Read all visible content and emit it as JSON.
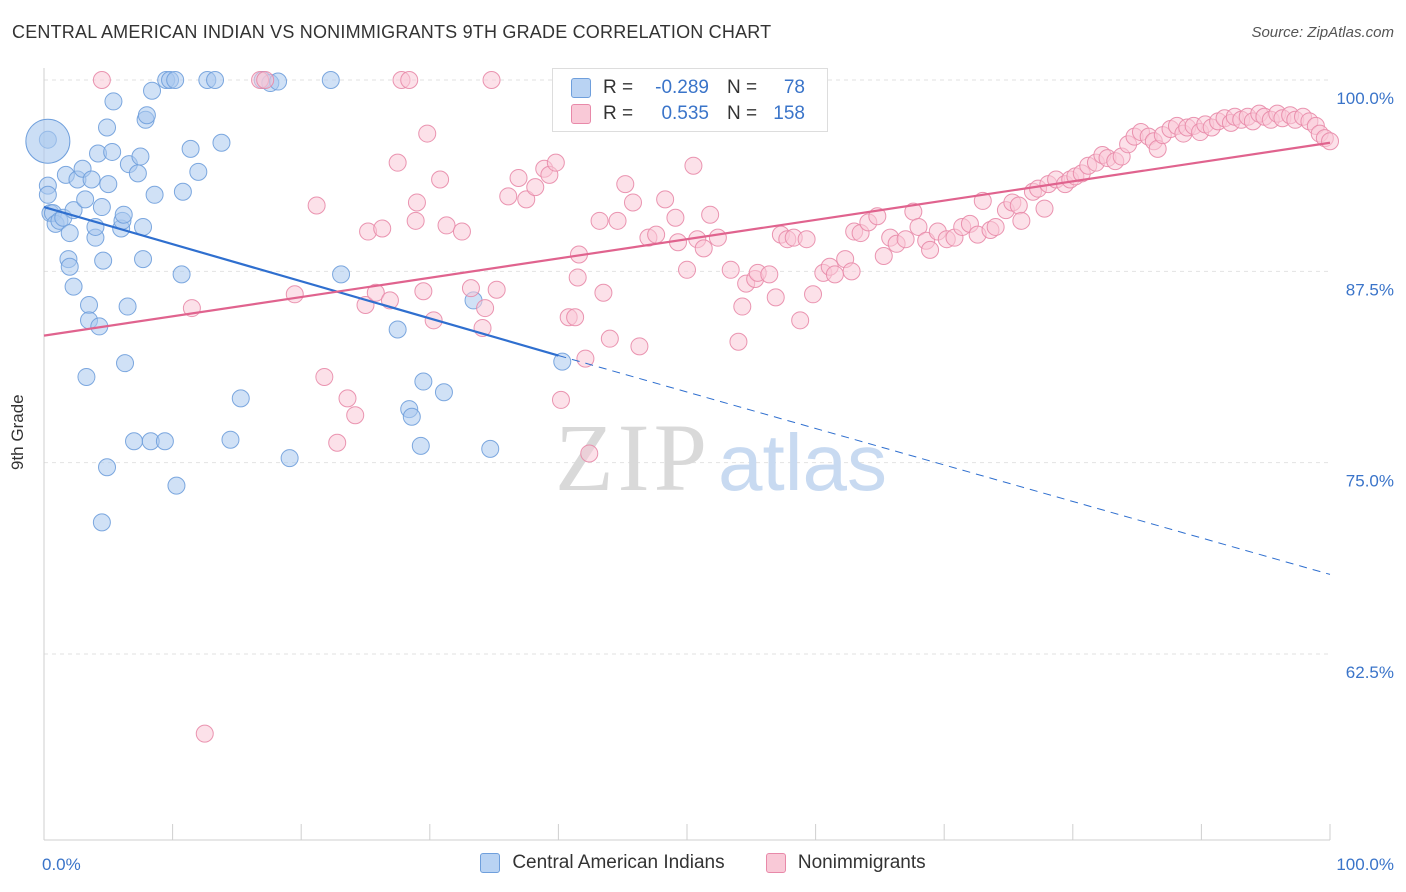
{
  "title": "CENTRAL AMERICAN INDIAN VS NONIMMIGRANTS 9TH GRADE CORRELATION CHART",
  "source": "Source: ZipAtlas.com",
  "watermark": {
    "zip": "ZIP",
    "atlas": "atlas"
  },
  "legend_box": {
    "rows": [
      {
        "r_label": "R =",
        "r_value": "-0.289",
        "n_label": "N =",
        "n_value": "78",
        "color": "#a9c8ef"
      },
      {
        "r_label": "R =",
        "r_value": "0.535",
        "n_label": "N =",
        "n_value": "158",
        "color": "#f5b6c9"
      }
    ]
  },
  "bottom_legend": [
    {
      "label": "Central American Indians",
      "color": "#a9c8ef",
      "border": "#6f9fdc"
    },
    {
      "label": "Nonimmigrants",
      "color": "#f9c9d7",
      "border": "#e889a9"
    }
  ],
  "chart_data": {
    "type": "scatter",
    "title": "CENTRAL AMERICAN INDIAN VS NONIMMIGRANTS 9TH GRADE CORRELATION CHART",
    "xlabel": "",
    "ylabel": "9th Grade",
    "xlim": [
      0,
      100
    ],
    "ylim": [
      53,
      101
    ],
    "x_tick_labels": [
      "0.0%",
      "100.0%"
    ],
    "y_ticks": [
      62.5,
      75.0,
      87.5,
      100.0
    ],
    "y_tick_labels": [
      "62.5%",
      "75.0%",
      "87.5%",
      "100.0%"
    ],
    "grid": true,
    "series": [
      {
        "name": "Central American Indians",
        "color": "#6f9fdc",
        "fill": "#a9c8ef",
        "trend": {
          "x": [
            0,
            40
          ],
          "y": [
            91.7,
            82.0
          ],
          "dashed_to": [
            100,
            67.7
          ]
        },
        "points": [
          [
            0.3,
            96.1
          ],
          [
            0.3,
            93.1
          ],
          [
            0.5,
            91.3
          ],
          [
            0.7,
            91.3
          ],
          [
            0.9,
            90.6
          ],
          [
            1.2,
            90.8
          ],
          [
            1.5,
            91.0
          ],
          [
            1.7,
            93.8
          ],
          [
            2.0,
            90.0
          ],
          [
            2.3,
            91.5
          ],
          [
            1.9,
            88.3
          ],
          [
            2.0,
            87.8
          ],
          [
            2.3,
            86.5
          ],
          [
            2.6,
            93.5
          ],
          [
            3.0,
            94.2
          ],
          [
            3.2,
            92.2
          ],
          [
            3.5,
            85.3
          ],
          [
            3.5,
            84.3
          ],
          [
            3.7,
            93.5
          ],
          [
            4.0,
            89.7
          ],
          [
            4.0,
            90.4
          ],
          [
            4.3,
            83.9
          ],
          [
            4.2,
            95.2
          ],
          [
            4.6,
            88.2
          ],
          [
            4.9,
            74.7
          ],
          [
            4.5,
            71.1
          ],
          [
            4.5,
            91.7
          ],
          [
            5.0,
            93.2
          ],
          [
            4.9,
            96.9
          ],
          [
            5.3,
            95.3
          ],
          [
            5.4,
            98.6
          ],
          [
            6.0,
            90.3
          ],
          [
            6.1,
            90.8
          ],
          [
            6.2,
            91.2
          ],
          [
            6.3,
            81.5
          ],
          [
            6.5,
            85.2
          ],
          [
            6.6,
            94.5
          ],
          [
            7.0,
            76.4
          ],
          [
            7.3,
            93.9
          ],
          [
            7.5,
            95.0
          ],
          [
            7.7,
            88.3
          ],
          [
            7.7,
            90.4
          ],
          [
            7.9,
            97.4
          ],
          [
            8.0,
            97.7
          ],
          [
            8.3,
            76.4
          ],
          [
            8.4,
            99.3
          ],
          [
            8.6,
            92.5
          ],
          [
            9.4,
            76.4
          ],
          [
            9.5,
            100.0
          ],
          [
            9.8,
            100.0
          ],
          [
            10.3,
            73.5
          ],
          [
            10.2,
            100.0
          ],
          [
            10.8,
            92.7
          ],
          [
            10.7,
            87.3
          ],
          [
            11.4,
            95.5
          ],
          [
            12.0,
            94.0
          ],
          [
            12.7,
            100.0
          ],
          [
            13.3,
            100.0
          ],
          [
            13.8,
            95.9
          ],
          [
            14.5,
            76.5
          ],
          [
            15.3,
            79.2
          ],
          [
            17.0,
            100.0
          ],
          [
            17.6,
            99.8
          ],
          [
            18.2,
            99.9
          ],
          [
            19.1,
            75.3
          ],
          [
            22.3,
            100.0
          ],
          [
            23.1,
            87.3
          ],
          [
            27.5,
            83.7
          ],
          [
            28.4,
            78.5
          ],
          [
            28.6,
            78.0
          ],
          [
            29.3,
            76.1
          ],
          [
            29.5,
            80.3
          ],
          [
            31.1,
            79.6
          ],
          [
            33.4,
            85.6
          ],
          [
            34.7,
            75.9
          ],
          [
            3.3,
            80.6
          ],
          [
            0.3,
            92.5
          ],
          [
            40.3,
            81.6
          ]
        ],
        "big_point": [
          0.3,
          96.0
        ]
      },
      {
        "name": "Nonimmigrants",
        "color": "#e889a9",
        "fill": "#f9c9d7",
        "trend": {
          "x": [
            0,
            100
          ],
          "y": [
            83.3,
            95.9
          ]
        },
        "points": [
          [
            4.5,
            100.0
          ],
          [
            11.5,
            85.1
          ],
          [
            12.5,
            57.3
          ],
          [
            16.8,
            100.0
          ],
          [
            17.2,
            100.0
          ],
          [
            19.5,
            86.0
          ],
          [
            21.2,
            91.8
          ],
          [
            21.8,
            80.6
          ],
          [
            22.8,
            76.3
          ],
          [
            23.6,
            79.2
          ],
          [
            24.2,
            78.1
          ],
          [
            25.0,
            85.3
          ],
          [
            25.2,
            90.1
          ],
          [
            25.8,
            86.1
          ],
          [
            26.3,
            90.3
          ],
          [
            26.9,
            85.6
          ],
          [
            27.5,
            94.6
          ],
          [
            27.8,
            100.0
          ],
          [
            28.4,
            100.0
          ],
          [
            28.9,
            90.8
          ],
          [
            29.0,
            92.0
          ],
          [
            29.5,
            86.2
          ],
          [
            29.8,
            96.5
          ],
          [
            30.3,
            84.3
          ],
          [
            30.8,
            93.5
          ],
          [
            31.3,
            90.5
          ],
          [
            32.5,
            90.1
          ],
          [
            33.2,
            86.4
          ],
          [
            34.3,
            85.1
          ],
          [
            34.1,
            83.8
          ],
          [
            35.2,
            86.3
          ],
          [
            34.8,
            100.0
          ],
          [
            36.1,
            92.4
          ],
          [
            36.9,
            93.6
          ],
          [
            37.5,
            92.2
          ],
          [
            38.2,
            93.0
          ],
          [
            38.9,
            94.2
          ],
          [
            39.3,
            93.8
          ],
          [
            39.8,
            94.6
          ],
          [
            40.2,
            79.1
          ],
          [
            40.8,
            84.5
          ],
          [
            41.3,
            84.5
          ],
          [
            41.6,
            88.6
          ],
          [
            41.5,
            87.1
          ],
          [
            42.4,
            75.6
          ],
          [
            42.1,
            81.8
          ],
          [
            43.2,
            90.8
          ],
          [
            43.5,
            86.1
          ],
          [
            44.0,
            83.1
          ],
          [
            44.6,
            90.8
          ],
          [
            45.2,
            93.2
          ],
          [
            45.8,
            92.0
          ],
          [
            46.3,
            82.6
          ],
          [
            47.0,
            89.7
          ],
          [
            47.6,
            89.9
          ],
          [
            48.3,
            92.2
          ],
          [
            49.3,
            89.4
          ],
          [
            49.1,
            91.0
          ],
          [
            50.0,
            87.6
          ],
          [
            50.5,
            94.4
          ],
          [
            50.8,
            89.6
          ],
          [
            51.3,
            89.0
          ],
          [
            51.8,
            91.2
          ],
          [
            52.4,
            89.7
          ],
          [
            53.4,
            87.6
          ],
          [
            54.0,
            82.9
          ],
          [
            54.6,
            86.7
          ],
          [
            55.3,
            87.0
          ],
          [
            54.3,
            85.2
          ],
          [
            55.5,
            87.4
          ],
          [
            56.4,
            87.3
          ],
          [
            56.9,
            85.8
          ],
          [
            57.3,
            89.9
          ],
          [
            57.8,
            89.6
          ],
          [
            58.3,
            89.7
          ],
          [
            58.8,
            84.3
          ],
          [
            59.3,
            89.6
          ],
          [
            59.8,
            86.0
          ],
          [
            60.6,
            87.4
          ],
          [
            61.1,
            87.8
          ],
          [
            61.5,
            87.3
          ],
          [
            62.3,
            88.3
          ],
          [
            62.8,
            87.5
          ],
          [
            63.0,
            90.1
          ],
          [
            63.5,
            90.0
          ],
          [
            64.1,
            90.7
          ],
          [
            64.8,
            91.1
          ],
          [
            65.3,
            88.5
          ],
          [
            65.8,
            89.7
          ],
          [
            66.3,
            89.3
          ],
          [
            67.0,
            89.6
          ],
          [
            67.6,
            91.4
          ],
          [
            68.0,
            90.4
          ],
          [
            68.6,
            89.5
          ],
          [
            68.9,
            88.9
          ],
          [
            69.5,
            90.1
          ],
          [
            70.2,
            89.6
          ],
          [
            70.8,
            89.7
          ],
          [
            71.4,
            90.4
          ],
          [
            72.0,
            90.6
          ],
          [
            72.6,
            89.9
          ],
          [
            73.0,
            92.1
          ],
          [
            73.6,
            90.2
          ],
          [
            74.0,
            90.4
          ],
          [
            74.8,
            91.5
          ],
          [
            75.3,
            92.0
          ],
          [
            75.8,
            91.8
          ],
          [
            76.0,
            90.8
          ],
          [
            76.9,
            92.7
          ],
          [
            77.3,
            92.9
          ],
          [
            77.8,
            91.6
          ],
          [
            78.1,
            93.2
          ],
          [
            78.7,
            93.5
          ],
          [
            79.4,
            93.2
          ],
          [
            79.8,
            93.5
          ],
          [
            80.2,
            93.7
          ],
          [
            80.7,
            93.9
          ],
          [
            81.2,
            94.4
          ],
          [
            81.8,
            94.6
          ],
          [
            82.3,
            95.1
          ],
          [
            82.7,
            94.9
          ],
          [
            83.3,
            94.7
          ],
          [
            83.8,
            95.0
          ],
          [
            84.3,
            95.8
          ],
          [
            84.8,
            96.3
          ],
          [
            85.3,
            96.6
          ],
          [
            85.9,
            96.3
          ],
          [
            86.3,
            96.0
          ],
          [
            86.6,
            95.5
          ],
          [
            87.0,
            96.4
          ],
          [
            87.6,
            96.8
          ],
          [
            88.1,
            97.0
          ],
          [
            88.6,
            96.5
          ],
          [
            88.9,
            96.9
          ],
          [
            89.4,
            97.0
          ],
          [
            89.9,
            96.6
          ],
          [
            90.3,
            97.1
          ],
          [
            90.8,
            96.9
          ],
          [
            91.3,
            97.3
          ],
          [
            91.8,
            97.5
          ],
          [
            92.3,
            97.2
          ],
          [
            92.6,
            97.6
          ],
          [
            93.1,
            97.4
          ],
          [
            93.6,
            97.6
          ],
          [
            94.0,
            97.3
          ],
          [
            94.5,
            97.8
          ],
          [
            94.9,
            97.6
          ],
          [
            95.4,
            97.4
          ],
          [
            95.9,
            97.8
          ],
          [
            96.3,
            97.5
          ],
          [
            96.9,
            97.7
          ],
          [
            97.3,
            97.4
          ],
          [
            97.9,
            97.6
          ],
          [
            98.4,
            97.3
          ],
          [
            98.9,
            97.0
          ],
          [
            99.2,
            96.5
          ],
          [
            99.6,
            96.2
          ],
          [
            100.0,
            96.0
          ]
        ]
      }
    ]
  }
}
